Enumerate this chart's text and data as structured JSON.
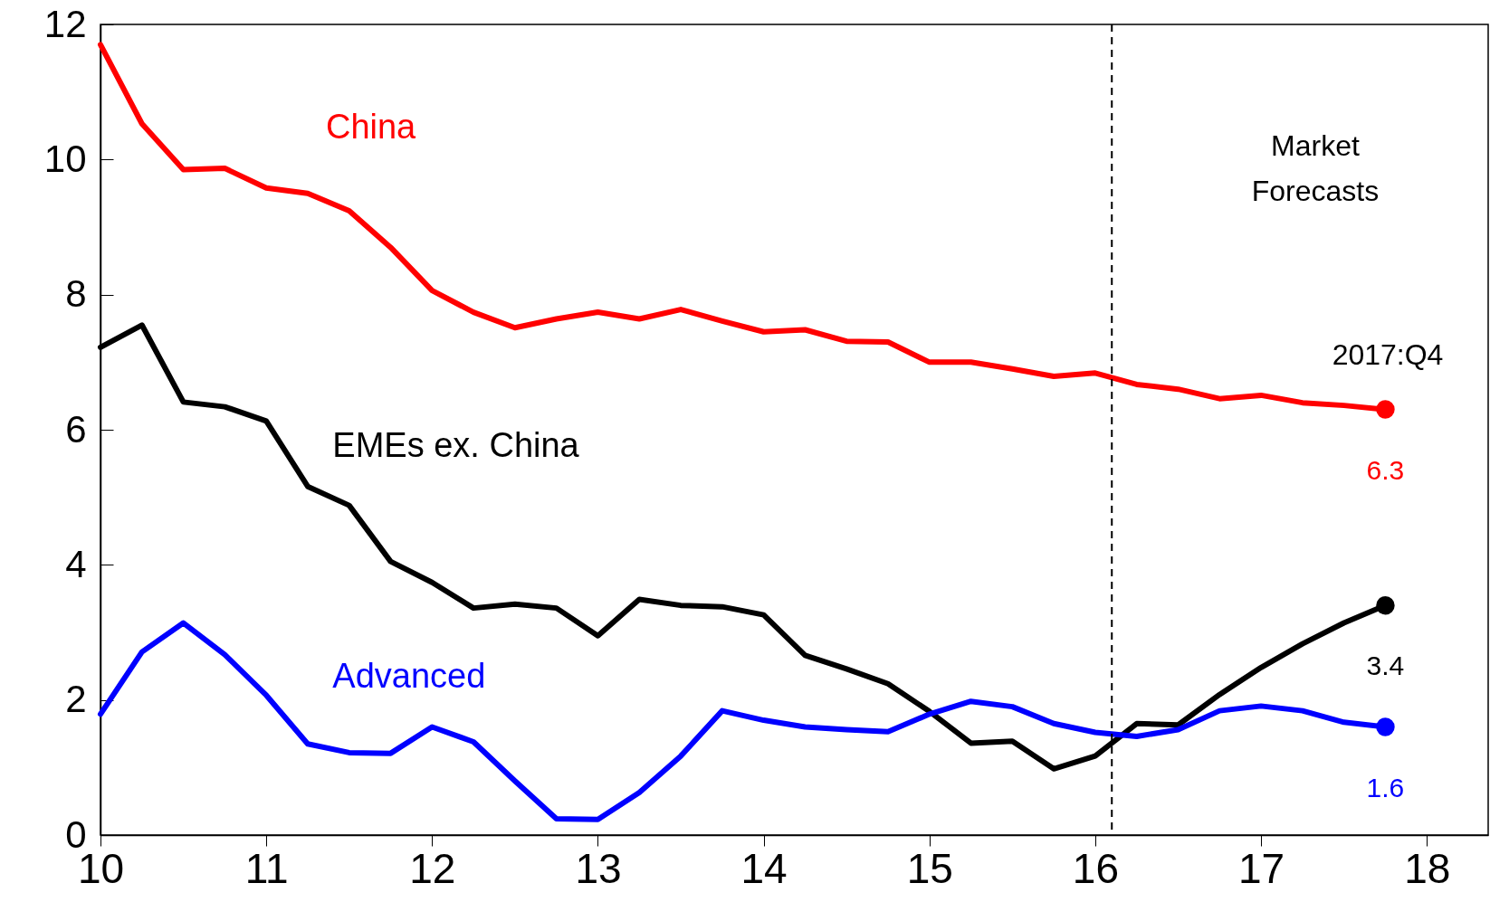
{
  "chart_data": {
    "type": "line",
    "x": [
      10,
      10.25,
      10.5,
      10.75,
      11,
      11.25,
      11.5,
      11.75,
      12,
      12.25,
      12.5,
      12.75,
      13,
      13.25,
      13.5,
      13.75,
      14,
      14.25,
      14.5,
      14.75,
      15,
      15.25,
      15.5,
      15.75,
      16,
      16.25,
      16.5,
      16.75,
      17,
      17.25,
      17.5,
      17.75
    ],
    "series": [
      {
        "name": "China",
        "color": "#ff0000",
        "values": [
          11.7,
          10.53,
          9.85,
          9.87,
          9.58,
          9.5,
          9.24,
          8.7,
          8.06,
          7.74,
          7.51,
          7.64,
          7.74,
          7.64,
          7.78,
          7.61,
          7.45,
          7.48,
          7.31,
          7.3,
          7.0,
          7.0,
          6.9,
          6.79,
          6.84,
          6.67,
          6.6,
          6.46,
          6.51,
          6.4,
          6.36,
          6.3
        ],
        "value_labels": [
          null,
          null,
          null,
          null,
          null,
          null,
          null,
          null,
          null,
          null,
          null,
          null,
          null,
          null,
          null,
          null,
          null,
          null,
          null,
          null,
          null,
          null,
          null,
          null,
          null,
          null,
          null,
          null,
          null,
          null,
          null,
          "6.3"
        ]
      },
      {
        "name": "EMEs ex. China",
        "color": "#000000",
        "values": [
          7.22,
          7.55,
          6.41,
          6.34,
          6.13,
          5.16,
          4.88,
          4.05,
          3.74,
          3.36,
          3.42,
          3.36,
          2.95,
          3.49,
          3.4,
          3.38,
          3.26,
          2.66,
          2.46,
          2.24,
          1.83,
          1.36,
          1.39,
          0.98,
          1.17,
          1.65,
          1.63,
          2.08,
          2.48,
          2.83,
          3.14,
          3.4
        ],
        "value_labels": [
          null,
          null,
          null,
          null,
          null,
          null,
          null,
          null,
          null,
          null,
          null,
          null,
          null,
          null,
          null,
          null,
          null,
          null,
          null,
          null,
          null,
          null,
          null,
          null,
          null,
          null,
          null,
          null,
          null,
          null,
          null,
          "3.4"
        ]
      },
      {
        "name": "Advanced",
        "color": "#0000ff",
        "values": [
          1.79,
          2.71,
          3.14,
          2.67,
          2.07,
          1.35,
          1.22,
          1.21,
          1.6,
          1.38,
          0.8,
          0.24,
          0.23,
          0.63,
          1.17,
          1.84,
          1.7,
          1.6,
          1.56,
          1.53,
          1.79,
          1.98,
          1.9,
          1.65,
          1.52,
          1.46,
          1.56,
          1.84,
          1.91,
          1.84,
          1.67,
          1.6
        ],
        "value_labels": [
          null,
          null,
          null,
          null,
          null,
          null,
          null,
          null,
          null,
          null,
          null,
          null,
          null,
          null,
          null,
          null,
          null,
          null,
          null,
          null,
          null,
          null,
          null,
          null,
          null,
          null,
          null,
          null,
          null,
          null,
          null,
          "1.6"
        ]
      }
    ],
    "xlim": [
      10,
      18.37
    ],
    "xticks": [
      10,
      11,
      12,
      13,
      14,
      15,
      16,
      17,
      18
    ],
    "ylim": [
      0,
      12
    ],
    "yticks": [
      0,
      2,
      4,
      6,
      8,
      10,
      12
    ],
    "ref_lines": [
      {
        "axis": "x",
        "value": 16.1,
        "color": "#000000",
        "line_style": "dashed"
      }
    ],
    "annotations": [
      "Market Forecasts",
      "2017:Q4"
    ],
    "grid": false,
    "line_style": "solid",
    "marker": "none"
  }
}
